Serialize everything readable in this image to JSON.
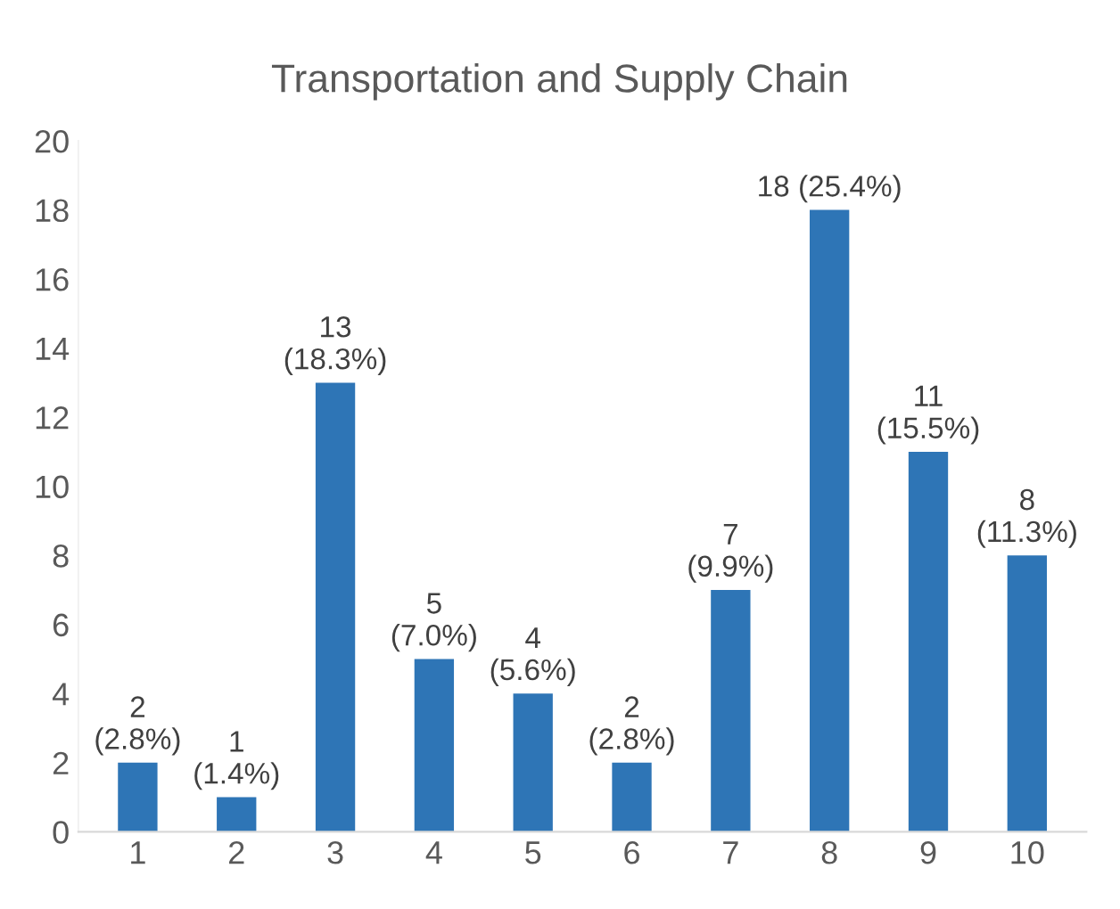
{
  "chart_data": {
    "type": "bar",
    "title": "Transportation and Supply Chain",
    "categories": [
      "1",
      "2",
      "3",
      "4",
      "5",
      "6",
      "7",
      "8",
      "9",
      "10"
    ],
    "values": [
      2,
      1,
      13,
      5,
      4,
      2,
      7,
      18,
      11,
      8
    ],
    "color": "#2e75b6",
    "value_labels": [
      "2\n(2.8%)",
      "1\n(1.4%)",
      "13\n(18.3%)",
      "5\n(7.0%)",
      "4\n(5.6%)",
      "2\n(2.8%)",
      "7\n(9.9%)",
      "18 (25.4%)",
      "11\n(15.5%)",
      "8\n(11.3%)"
    ],
    "ylim": [
      0,
      20
    ],
    "yticks": [
      0,
      2,
      4,
      6,
      8,
      10,
      12,
      14,
      16,
      18,
      20
    ],
    "grid": false,
    "legend": false
  }
}
